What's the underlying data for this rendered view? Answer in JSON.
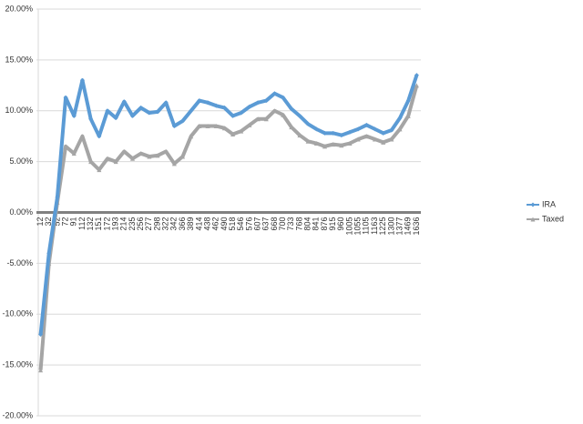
{
  "chart_data": {
    "type": "line",
    "categories": [
      "12",
      "32",
      "52",
      "72",
      "91",
      "112",
      "132",
      "151",
      "172",
      "193",
      "214",
      "235",
      "256",
      "277",
      "298",
      "322",
      "342",
      "366",
      "389",
      "414",
      "438",
      "462",
      "490",
      "518",
      "546",
      "576",
      "607",
      "637",
      "668",
      "700",
      "733",
      "768",
      "804",
      "841",
      "876",
      "915",
      "960",
      "1005",
      "1055",
      "1105",
      "1163",
      "1225",
      "1300",
      "1377",
      "1469",
      "1636"
    ],
    "series": [
      {
        "name": "IRA",
        "color": "#5b9bd5",
        "marker": "diamond",
        "values": [
          -12,
          -4,
          1.5,
          11.3,
          9.5,
          13,
          9.2,
          7.5,
          10,
          9.3,
          10.9,
          9.5,
          10.3,
          9.8,
          9.9,
          10.8,
          8.5,
          9,
          10,
          11,
          10.8,
          10.5,
          10.3,
          9.5,
          9.8,
          10.4,
          10.8,
          11,
          11.7,
          11.3,
          10.2,
          9.5,
          8.7,
          8.2,
          7.8,
          7.8,
          7.6,
          7.9,
          8.2,
          8.6,
          8.2,
          7.8,
          8.1,
          9.3,
          11,
          13.5
        ]
      },
      {
        "name": "Taxed",
        "color": "#a5a5a5",
        "marker": "triangle",
        "values": [
          -15.5,
          -5,
          1,
          6.5,
          5.8,
          7.5,
          5,
          4.2,
          5.3,
          5,
          6,
          5.3,
          5.8,
          5.5,
          5.6,
          6,
          4.8,
          5.5,
          7.5,
          8.5,
          8.5,
          8.5,
          8.3,
          7.7,
          8,
          8.6,
          9.2,
          9.2,
          10,
          9.6,
          8.4,
          7.6,
          7,
          6.8,
          6.5,
          6.7,
          6.6,
          6.8,
          7.2,
          7.5,
          7.2,
          6.9,
          7.2,
          8.2,
          9.5,
          12.5
        ]
      }
    ],
    "ylim": [
      -20,
      20
    ],
    "yticks": [
      {
        "value": -20,
        "label": "-20.00%"
      },
      {
        "value": -15,
        "label": "-15.00%"
      },
      {
        "value": -10,
        "label": "-10.00%"
      },
      {
        "value": -5,
        "label": "-5.00%"
      },
      {
        "value": 0,
        "label": "0.00%"
      },
      {
        "value": 5,
        "label": "5.00%"
      },
      {
        "value": 10,
        "label": "10.00%"
      },
      {
        "value": 15,
        "label": "15.00%"
      },
      {
        "value": 20,
        "label": "20.00%"
      }
    ],
    "grid": true,
    "legend": "right"
  }
}
